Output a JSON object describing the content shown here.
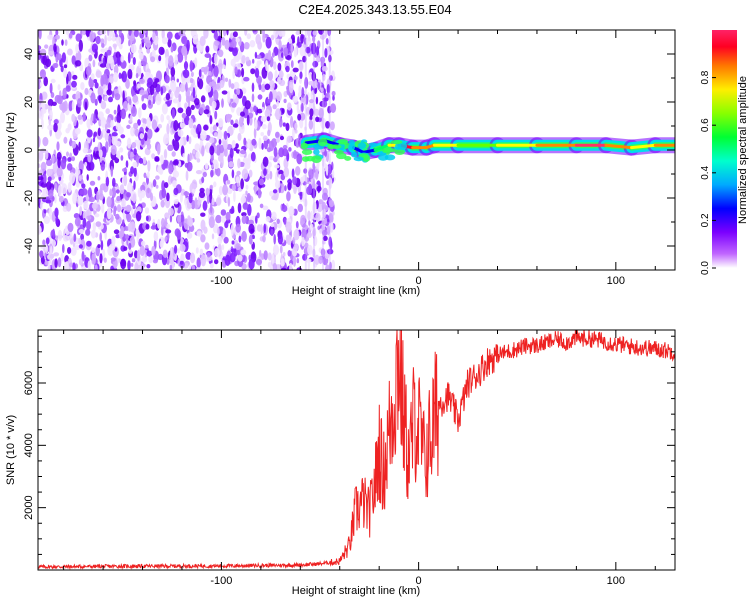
{
  "title": "C2E4.2025.343.13.55.E04",
  "chart_data": [
    {
      "type": "heatmap",
      "xlabel": "Height of straight line (km)",
      "ylabel": "Frequency (Hz)",
      "xlim": [
        -193,
        130
      ],
      "ylim": [
        -50,
        50
      ],
      "xticks": [
        -100,
        0,
        100
      ],
      "yticks": [
        -40,
        -20,
        0,
        20,
        40
      ],
      "xticklabels": [
        "-100",
        "0",
        "100"
      ],
      "yticklabels": [
        "-40",
        "-20",
        "0",
        "20",
        "40"
      ],
      "noise_region_x": [
        -193,
        -43
      ],
      "signal_band": {
        "freq_hz": 2,
        "x_start": -58,
        "x_end": 130,
        "points": [
          {
            "x": -57,
            "f": 3,
            "level": 0.25
          },
          {
            "x": -48,
            "f": 4,
            "level": 0.2
          },
          {
            "x": -40,
            "f": 2,
            "level": 0.35
          },
          {
            "x": -33,
            "f": 1,
            "level": 0.25
          },
          {
            "x": -28,
            "f": -1,
            "level": 0.2
          },
          {
            "x": -22,
            "f": 0,
            "level": 0.35
          },
          {
            "x": -15,
            "f": 2,
            "level": 0.45
          },
          {
            "x": -10,
            "f": 2,
            "level": 0.9
          },
          {
            "x": -3,
            "f": 1,
            "level": 0.95
          },
          {
            "x": 4,
            "f": 1,
            "level": 0.6
          },
          {
            "x": 8,
            "f": 2,
            "level": 0.9
          },
          {
            "x": 20,
            "f": 2,
            "level": 0.5
          },
          {
            "x": 40,
            "f": 2,
            "level": 0.6
          },
          {
            "x": 60,
            "f": 2,
            "level": 0.7
          },
          {
            "x": 80,
            "f": 2,
            "level": 0.95
          },
          {
            "x": 95,
            "f": 2,
            "level": 0.95
          },
          {
            "x": 108,
            "f": 1,
            "level": 0.5
          },
          {
            "x": 120,
            "f": 2,
            "level": 0.85
          },
          {
            "x": 130,
            "f": 2,
            "level": 0.8
          }
        ]
      },
      "colorbar": {
        "label": "Normalized spectral amplitude",
        "range": [
          0,
          1
        ],
        "ticks": [
          0.0,
          0.2,
          0.4,
          0.6,
          0.8
        ],
        "ticklabels": [
          "0.0",
          "0.2",
          "0.4",
          "0.6",
          "0.8"
        ],
        "colors": [
          "#ffffff",
          "#7b00ff",
          "#0000ff",
          "#00ccff",
          "#00ff66",
          "#66ff00",
          "#ffff00",
          "#ff8800",
          "#ff0033",
          "#ff3366"
        ]
      }
    },
    {
      "type": "line",
      "xlabel": "Height of straight line (km)",
      "ylabel": "SNR (10 * v/v)",
      "xlim": [
        -193,
        130
      ],
      "ylim": [
        0,
        7700
      ],
      "xticks": [
        -100,
        0,
        100
      ],
      "yticks": [
        2000,
        4000,
        6000
      ],
      "xticklabels": [
        "-100",
        "0",
        "100"
      ],
      "yticklabels": [
        "2000",
        "4000",
        "6000"
      ],
      "color": "#ee2222",
      "x": [
        -193,
        -150,
        -100,
        -60,
        -50,
        -45,
        -40,
        -35,
        -32,
        -28,
        -25,
        -22,
        -20,
        -18,
        -15,
        -12,
        -10,
        -8,
        -5,
        -2,
        0,
        3,
        6,
        10,
        15,
        20,
        25,
        30,
        35,
        40,
        45,
        50,
        55,
        60,
        70,
        75,
        80,
        90,
        100,
        110,
        120,
        130
      ],
      "y": [
        100,
        120,
        130,
        160,
        200,
        240,
        280,
        800,
        1900,
        2200,
        1800,
        2800,
        4000,
        3000,
        4400,
        5800,
        7000,
        5200,
        3400,
        5000,
        4600,
        3500,
        4300,
        5300,
        5600,
        4800,
        6000,
        6300,
        6700,
        6900,
        7000,
        7100,
        7200,
        7200,
        7400,
        7300,
        7450,
        7400,
        7250,
        7150,
        7100,
        7000
      ]
    }
  ]
}
